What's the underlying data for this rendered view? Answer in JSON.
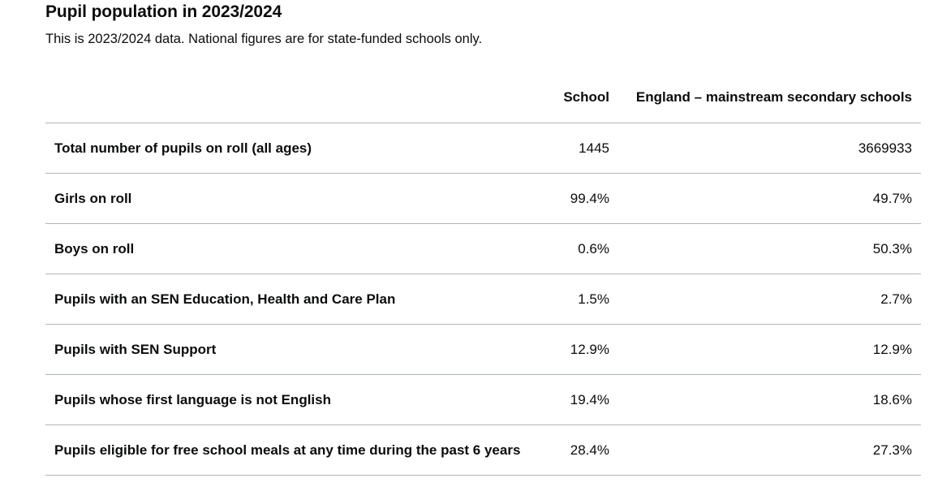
{
  "section": {
    "title": "Pupil population in 2023/2024",
    "subtitle": "This is 2023/2024 data. National figures are for state-funded schools only."
  },
  "table": {
    "headers": {
      "label": "",
      "school": "School",
      "england": "England – mainstream secondary schools"
    },
    "rows": [
      {
        "label": "Total number of pupils on roll (all ages)",
        "school": "1445",
        "england": "3669933"
      },
      {
        "label": "Girls on roll",
        "school": "99.4%",
        "england": "49.7%"
      },
      {
        "label": "Boys on roll",
        "school": "0.6%",
        "england": "50.3%"
      },
      {
        "label": "Pupils with an SEN Education, Health and Care Plan",
        "school": "1.5%",
        "england": "2.7%"
      },
      {
        "label": "Pupils with SEN Support",
        "school": "12.9%",
        "england": "12.9%"
      },
      {
        "label": "Pupils whose first language is not English",
        "school": "19.4%",
        "england": "18.6%"
      },
      {
        "label": "Pupils eligible for free school meals at any time during the past 6 years",
        "school": "28.4%",
        "england": "27.3%"
      }
    ]
  }
}
